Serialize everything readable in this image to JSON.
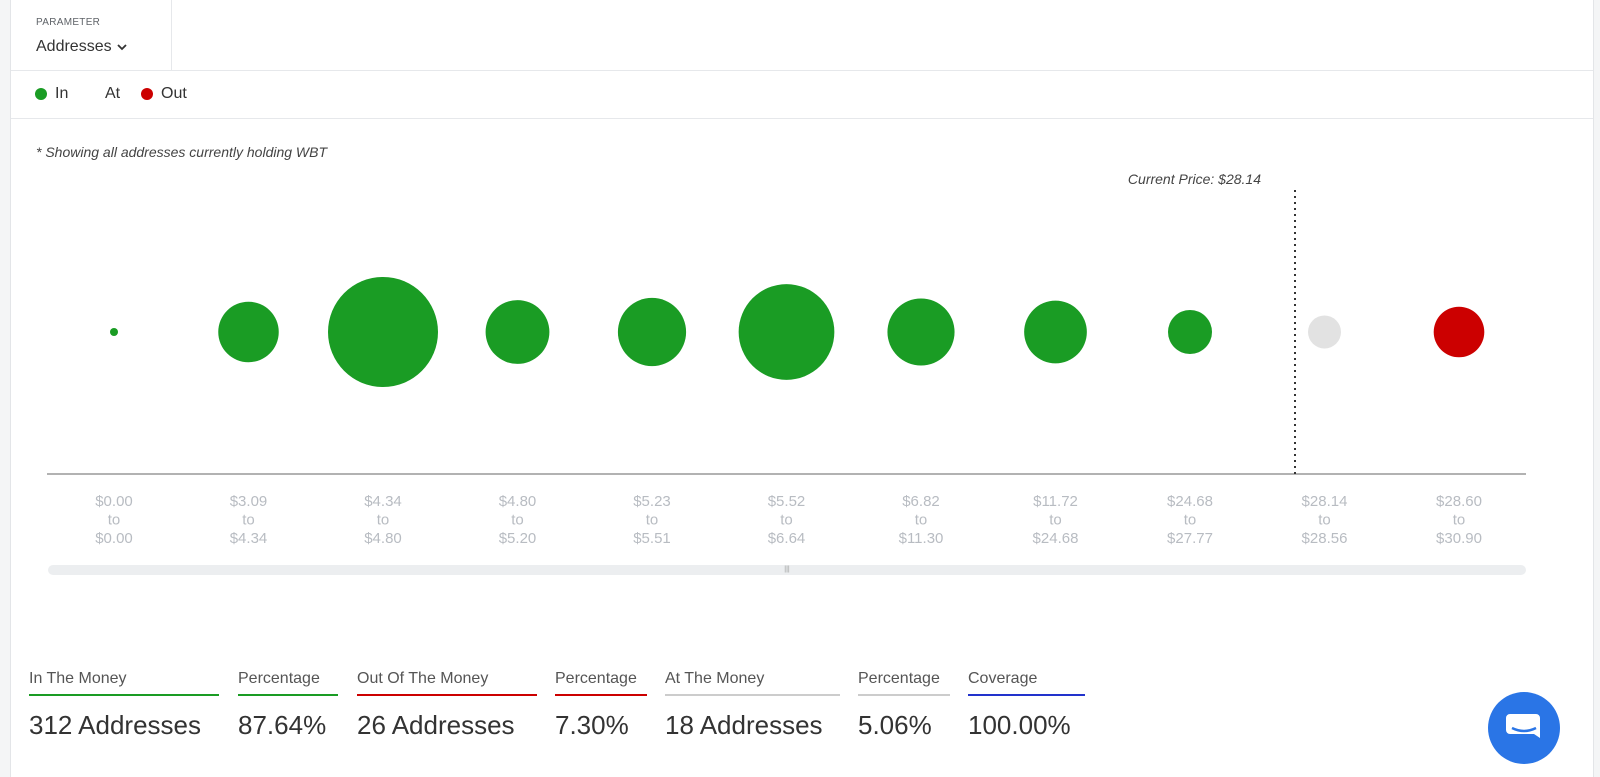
{
  "parameter": {
    "label": "PARAMETER",
    "value": "Addresses"
  },
  "legend": [
    {
      "label": "In",
      "color": "#1a9c24"
    },
    {
      "label": "At",
      "color": "#e2e2e2"
    },
    {
      "label": "Out",
      "color": "#cc0000"
    }
  ],
  "note": "* Showing all addresses currently holding WBT",
  "current_price_label": "Current Price: $28.14",
  "chart_data": {
    "type": "bubble",
    "title": "",
    "categories": [
      [
        "$0.00",
        "to",
        "$0.00"
      ],
      [
        "$3.09",
        "to",
        "$4.34"
      ],
      [
        "$4.34",
        "to",
        "$4.80"
      ],
      [
        "$4.80",
        "to",
        "$5.20"
      ],
      [
        "$5.23",
        "to",
        "$5.51"
      ],
      [
        "$5.52",
        "to",
        "$6.64"
      ],
      [
        "$6.82",
        "to",
        "$11.30"
      ],
      [
        "$11.72",
        "to",
        "$24.68"
      ],
      [
        "$24.68",
        "to",
        "$27.77"
      ],
      [
        "$28.14",
        "to",
        "$28.56"
      ],
      [
        "$28.60",
        "to",
        "$30.90"
      ]
    ],
    "status": [
      "in",
      "in",
      "in",
      "in",
      "in",
      "in",
      "in",
      "in",
      "in",
      "at",
      "out"
    ],
    "relative_size": [
      0.06,
      0.55,
      1.0,
      0.58,
      0.62,
      0.87,
      0.61,
      0.57,
      0.4,
      0.3,
      0.46
    ],
    "current_price": 28.14,
    "colors": {
      "in": "#1a9c24",
      "at": "#e2e2e2",
      "out": "#cc0000"
    }
  },
  "stats": [
    {
      "label": "In The Money",
      "value": "312 Addresses",
      "color": "#1a9c24"
    },
    {
      "label": "Percentage",
      "value": "87.64%",
      "color": "#1a9c24"
    },
    {
      "label": "Out Of The Money",
      "value": "26 Addresses",
      "color": "#cc0000"
    },
    {
      "label": "Percentage",
      "value": "7.30%",
      "color": "#cc0000"
    },
    {
      "label": "At The Money",
      "value": "18 Addresses",
      "color": "#cccccc"
    },
    {
      "label": "Percentage",
      "value": "5.06%",
      "color": "#cccccc"
    },
    {
      "label": "Coverage",
      "value": "100.00%",
      "color": "#2233cc"
    }
  ]
}
